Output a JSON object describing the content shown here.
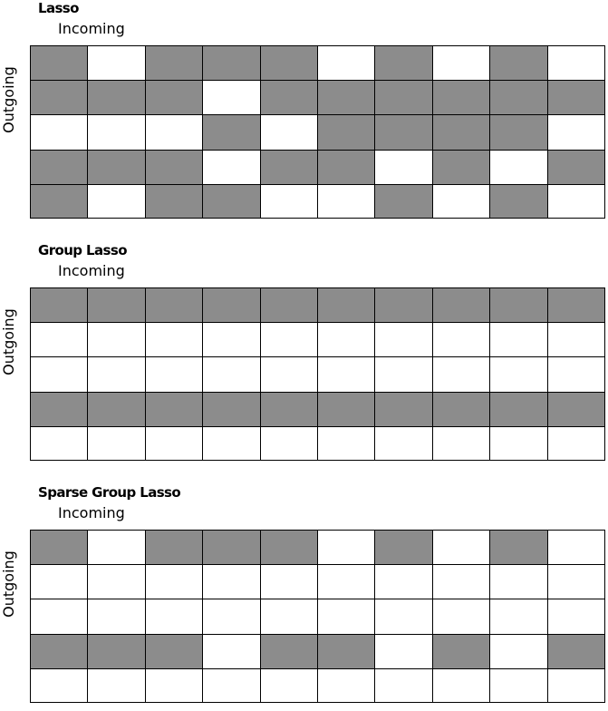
{
  "panels": [
    {
      "title": "Lasso",
      "xlabel": "Incoming",
      "ylabel": "Outgoing",
      "grid": [
        [
          1,
          0,
          1,
          1,
          1,
          0,
          1,
          0,
          1,
          0
        ],
        [
          1,
          1,
          1,
          0,
          1,
          1,
          1,
          1,
          1,
          1
        ],
        [
          0,
          0,
          0,
          1,
          0,
          1,
          1,
          1,
          1,
          0
        ],
        [
          1,
          1,
          1,
          0,
          1,
          1,
          0,
          1,
          0,
          1
        ],
        [
          1,
          0,
          1,
          1,
          0,
          0,
          1,
          0,
          1,
          0
        ]
      ]
    },
    {
      "title": "Group Lasso",
      "xlabel": "Incoming",
      "ylabel": "Outgoing",
      "grid": [
        [
          1,
          1,
          1,
          1,
          1,
          1,
          1,
          1,
          1,
          1
        ],
        [
          0,
          0,
          0,
          0,
          0,
          0,
          0,
          0,
          0,
          0
        ],
        [
          0,
          0,
          0,
          0,
          0,
          0,
          0,
          0,
          0,
          0
        ],
        [
          1,
          1,
          1,
          1,
          1,
          1,
          1,
          1,
          1,
          1
        ],
        [
          0,
          0,
          0,
          0,
          0,
          0,
          0,
          0,
          0,
          0
        ]
      ]
    },
    {
      "title": "Sparse Group Lasso",
      "xlabel": "Incoming",
      "ylabel": "Outgoing",
      "grid": [
        [
          1,
          0,
          1,
          1,
          1,
          0,
          1,
          0,
          1,
          0
        ],
        [
          0,
          0,
          0,
          0,
          0,
          0,
          0,
          0,
          0,
          0
        ],
        [
          0,
          0,
          0,
          0,
          0,
          0,
          0,
          0,
          0,
          0
        ],
        [
          1,
          1,
          1,
          0,
          1,
          1,
          0,
          1,
          0,
          1
        ],
        [
          0,
          0,
          0,
          0,
          0,
          0,
          0,
          0,
          0,
          0
        ]
      ]
    }
  ],
  "colors": {
    "active": "#8c8c8c",
    "inactive": "#ffffff",
    "border": "#000000"
  }
}
